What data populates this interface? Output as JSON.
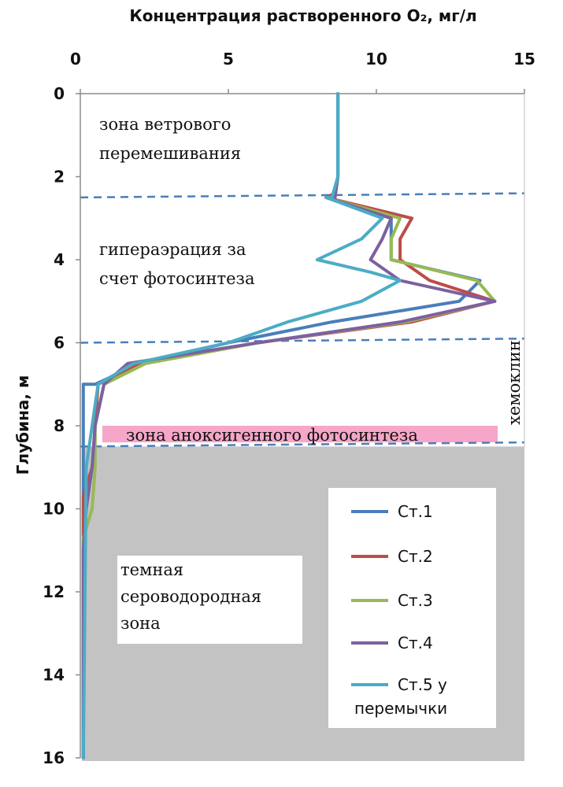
{
  "chart_data": {
    "type": "line",
    "title": "Концентрация растворенного O₂, мг/л",
    "xlabel": "",
    "ylabel": "Глубина, м",
    "xlim": [
      0,
      15
    ],
    "ylim": [
      0,
      16
    ],
    "y_inverted": true,
    "x_axis_position": "top",
    "x_ticks": [
      "0",
      "5",
      "10",
      "15"
    ],
    "y_ticks": [
      "0",
      "2",
      "4",
      "6",
      "8",
      "10",
      "12",
      "14",
      "16"
    ],
    "grid": false,
    "legend_position": "bottom-right",
    "series": [
      {
        "name": "Ст.1",
        "color": "#4a7ebb",
        "points": [
          [
            8.7,
            0
          ],
          [
            8.7,
            2
          ],
          [
            8.6,
            2.5
          ],
          [
            8.3,
            2.5
          ],
          [
            10.5,
            3
          ],
          [
            10.5,
            4
          ],
          [
            13.5,
            4.5
          ],
          [
            12.8,
            5
          ],
          [
            8.5,
            5.5
          ],
          [
            5.0,
            6
          ],
          [
            2.0,
            6.5
          ],
          [
            0.5,
            7
          ],
          [
            0.1,
            7
          ],
          [
            0.1,
            16
          ]
        ]
      },
      {
        "name": "Ст.2",
        "color": "#be4b48",
        "points": [
          [
            8.7,
            0
          ],
          [
            8.7,
            2
          ],
          [
            8.6,
            2.4
          ],
          [
            8.3,
            2.5
          ],
          [
            11.2,
            3
          ],
          [
            10.8,
            3.5
          ],
          [
            10.8,
            4
          ],
          [
            11.8,
            4.5
          ],
          [
            14.0,
            5
          ],
          [
            11.2,
            5.5
          ],
          [
            6.0,
            6
          ],
          [
            2.0,
            6.5
          ],
          [
            0.6,
            7
          ],
          [
            0.5,
            8
          ],
          [
            0.4,
            9
          ],
          [
            0.1,
            9.7
          ],
          [
            0.1,
            16
          ]
        ]
      },
      {
        "name": "Ст.3",
        "color": "#98b954",
        "points": [
          [
            8.7,
            0
          ],
          [
            8.7,
            2
          ],
          [
            8.6,
            2.5
          ],
          [
            8.3,
            2.5
          ],
          [
            10.8,
            3
          ],
          [
            10.5,
            3.5
          ],
          [
            10.5,
            4
          ],
          [
            13.4,
            4.5
          ],
          [
            14.0,
            5
          ],
          [
            11.0,
            5.5
          ],
          [
            6.0,
            6
          ],
          [
            2.2,
            6.5
          ],
          [
            0.8,
            7
          ],
          [
            0.5,
            8
          ],
          [
            0.5,
            9
          ],
          [
            0.4,
            10
          ],
          [
            0.1,
            10.7
          ],
          [
            0.1,
            16
          ]
        ]
      },
      {
        "name": "Ст.4",
        "color": "#7d60a0",
        "points": [
          [
            8.7,
            0
          ],
          [
            8.7,
            2
          ],
          [
            8.6,
            2.5
          ],
          [
            8.3,
            2.5
          ],
          [
            10.5,
            3
          ],
          [
            10.2,
            3.5
          ],
          [
            9.8,
            4
          ],
          [
            10.8,
            4.5
          ],
          [
            14.0,
            5
          ],
          [
            10.8,
            5.5
          ],
          [
            6.0,
            6
          ],
          [
            1.6,
            6.5
          ],
          [
            0.8,
            7
          ],
          [
            0.5,
            8
          ],
          [
            0.4,
            9
          ],
          [
            0.2,
            10
          ],
          [
            0.1,
            11
          ],
          [
            0.1,
            16
          ]
        ]
      },
      {
        "name": "Ст.5 у перемычки",
        "color": "#4bacc6",
        "points": [
          [
            8.7,
            0
          ],
          [
            8.7,
            2
          ],
          [
            8.5,
            2.5
          ],
          [
            8.3,
            2.5
          ],
          [
            10.2,
            3
          ],
          [
            9.5,
            3.5
          ],
          [
            8.0,
            4
          ],
          [
            9.8,
            4.3
          ],
          [
            10.8,
            4.5
          ],
          [
            9.5,
            5
          ],
          [
            7.0,
            5.5
          ],
          [
            5.0,
            6
          ],
          [
            1.8,
            6.5
          ],
          [
            0.6,
            7
          ],
          [
            0.4,
            8
          ],
          [
            0.2,
            9
          ],
          [
            0.1,
            16
          ]
        ]
      }
    ],
    "annotations": {
      "zone_wind": [
        "зона ветрового",
        "перемешивания"
      ],
      "zone_hyper": [
        "гипераэрация за",
        "счет фотосинтеза"
      ],
      "zone_anoxy": "зона аноксигенного фотосинтеза",
      "zone_dark": [
        "темная",
        "сероводородная",
        "зона"
      ],
      "chemocline": "хемоклин"
    },
    "colors": {
      "dashed_lines": "#4a7ebb",
      "dark_zone_fill": "#c3c3c3",
      "anoxy_band_fill": "#f6a6c8"
    }
  }
}
